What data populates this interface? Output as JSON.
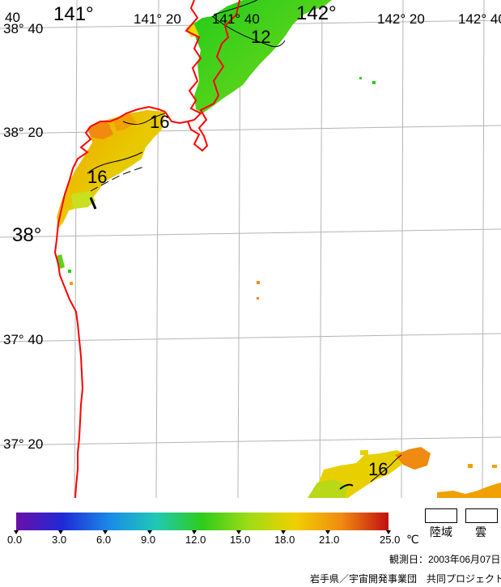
{
  "graticule": {
    "lon_labels": [
      "141°",
      "141° 20",
      "141° 40",
      "142°",
      "142° 20",
      "142° 40"
    ],
    "lat_labels": [
      "38° 40",
      "38° 20",
      "38°",
      "37° 40",
      "37° 20"
    ],
    "corner_label": "40"
  },
  "contours": {
    "labels": [
      "12",
      "16",
      "16",
      "16"
    ]
  },
  "colorbar": {
    "unit": "℃",
    "ticks": [
      "0.0",
      "3.0",
      "6.0",
      "9.0",
      "12.0",
      "15.0",
      "18.0",
      "21.0",
      "25.0"
    ],
    "colors": [
      "#6a0fa8",
      "#1f2ad6",
      "#1a8ae8",
      "#1fc9b5",
      "#2ecc1a",
      "#9fdc15",
      "#f0d000",
      "#f08a10",
      "#c01010"
    ]
  },
  "legend": {
    "land_label": "陸域",
    "cloud_label": "雲"
  },
  "footer": {
    "observation_date": "観測日：2003年06月07日",
    "credit": "岩手県／宇宙開発事業団　共同プロジェクト"
  },
  "colors": {
    "coastline": "#ff0000",
    "grid": "#b4b4b4",
    "contour": "#000000"
  }
}
